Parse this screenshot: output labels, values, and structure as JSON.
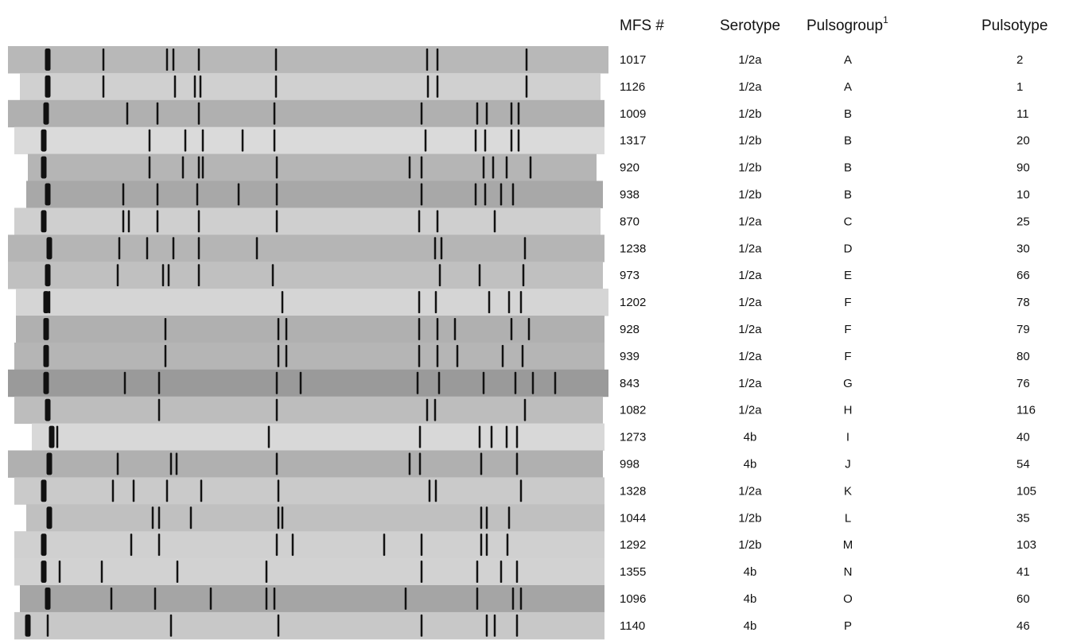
{
  "header": {
    "columns": [
      "MFS #",
      "Serotype",
      "Pulsogroup",
      "Pulsotype"
    ],
    "pulsogroup_footnote": "1"
  },
  "table": {
    "rows": [
      [
        "1017",
        "1/2a",
        "A",
        "2"
      ],
      [
        "1126",
        "1/2a",
        "A",
        "1"
      ],
      [
        "1009",
        "1/2b",
        "B",
        "11"
      ],
      [
        "1317",
        "1/2b",
        "B",
        "20"
      ],
      [
        "920",
        "1/2b",
        "B",
        "90"
      ],
      [
        "938",
        "1/2b",
        "B",
        "10"
      ],
      [
        "870",
        "1/2a",
        "C",
        "25"
      ],
      [
        "1238",
        "1/2a",
        "D",
        "30"
      ],
      [
        "973",
        "1/2a",
        "E",
        "66"
      ],
      [
        "1202",
        "1/2a",
        "F",
        "78"
      ],
      [
        "928",
        "1/2a",
        "F",
        "79"
      ],
      [
        "939",
        "1/2a",
        "F",
        "80"
      ],
      [
        "843",
        "1/2a",
        "G",
        "76"
      ],
      [
        "1082",
        "1/2a",
        "H",
        "116"
      ],
      [
        "1273",
        "4b",
        "I",
        "40"
      ],
      [
        "998",
        "4b",
        "J",
        "54"
      ],
      [
        "1328",
        "1/2a",
        "K",
        "105"
      ],
      [
        "1044",
        "1/2b",
        "L",
        "35"
      ],
      [
        "1292",
        "1/2b",
        "M",
        "103"
      ],
      [
        "1355",
        "4b",
        "N",
        "41"
      ],
      [
        "1096",
        "4b",
        "O",
        "60"
      ],
      [
        "1140",
        "4b",
        "P",
        "46"
      ]
    ]
  }
}
